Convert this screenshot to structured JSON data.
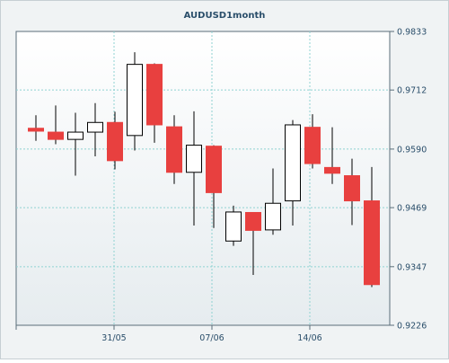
{
  "chart_data": {
    "type": "candlestick",
    "title": "AUDUSD1month",
    "x_ticks": [
      "31/05",
      "07/06",
      "14/06"
    ],
    "y_ticks": [
      "0.9833",
      "0.9712",
      "0.9590",
      "0.9469",
      "0.9347",
      "0.9226"
    ],
    "ylim": [
      0.9226,
      0.9833
    ],
    "grid": true,
    "colors": {
      "up_body": "#ffffff",
      "down_body": "#e8403f",
      "wick": "#000000",
      "grid": "#8fd2d2",
      "plot_bg_top": "#ffffff",
      "plot_bg_bottom": "#e6ecef",
      "frame_bg": "#f0f3f4",
      "text": "#2a4e6a"
    },
    "candles": [
      {
        "open": 0.9633,
        "high": 0.966,
        "low": 0.9607,
        "close": 0.9627
      },
      {
        "open": 0.9625,
        "high": 0.968,
        "low": 0.96,
        "close": 0.961
      },
      {
        "open": 0.961,
        "high": 0.9665,
        "low": 0.9535,
        "close": 0.9625
      },
      {
        "open": 0.9625,
        "high": 0.9685,
        "low": 0.9575,
        "close": 0.9645
      },
      {
        "open": 0.9645,
        "high": 0.9667,
        "low": 0.9548,
        "close": 0.9566
      },
      {
        "open": 0.9618,
        "high": 0.979,
        "low": 0.9587,
        "close": 0.9765
      },
      {
        "open": 0.9765,
        "high": 0.9767,
        "low": 0.9603,
        "close": 0.964
      },
      {
        "open": 0.9636,
        "high": 0.966,
        "low": 0.9518,
        "close": 0.9542
      },
      {
        "open": 0.9542,
        "high": 0.9668,
        "low": 0.9432,
        "close": 0.9598
      },
      {
        "open": 0.9596,
        "high": 0.9598,
        "low": 0.9427,
        "close": 0.95
      },
      {
        "open": 0.94,
        "high": 0.9473,
        "low": 0.939,
        "close": 0.946
      },
      {
        "open": 0.9459,
        "high": 0.946,
        "low": 0.933,
        "close": 0.9422
      },
      {
        "open": 0.9423,
        "high": 0.955,
        "low": 0.9413,
        "close": 0.9478
      },
      {
        "open": 0.9483,
        "high": 0.965,
        "low": 0.9432,
        "close": 0.964
      },
      {
        "open": 0.9635,
        "high": 0.9662,
        "low": 0.955,
        "close": 0.956
      },
      {
        "open": 0.9552,
        "high": 0.9635,
        "low": 0.9518,
        "close": 0.954
      },
      {
        "open": 0.9535,
        "high": 0.957,
        "low": 0.9433,
        "close": 0.9483
      },
      {
        "open": 0.9483,
        "high": 0.9553,
        "low": 0.9305,
        "close": 0.931
      }
    ]
  }
}
